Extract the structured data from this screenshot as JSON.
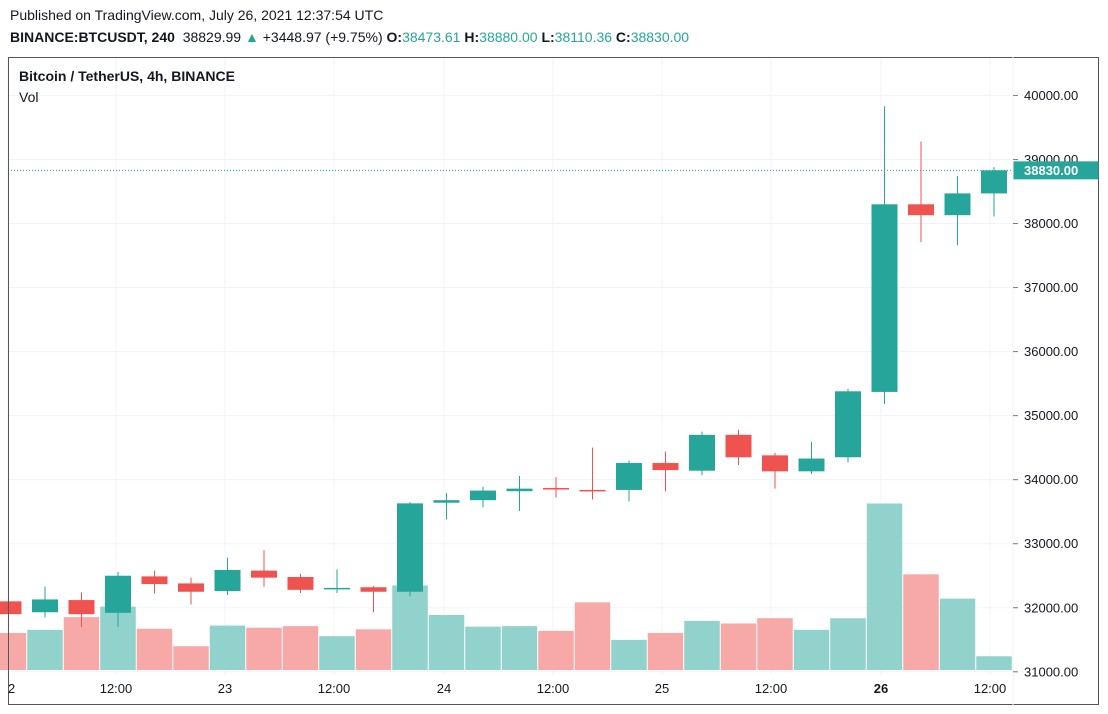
{
  "header": {
    "published": "Published on TradingView.com, July 26, 2021 12:37:54 UTC",
    "symbol": "BINANCE:BTCUSDT, 240",
    "last": "38829.99",
    "change_arrow": "▲",
    "change": "+3448.97 (+9.75%)",
    "o_label": "O:",
    "o_value": "38473.61",
    "h_label": "H:",
    "h_value": "38880.00",
    "l_label": "L:",
    "l_value": "38110.36",
    "c_label": "C:",
    "c_value": "38830.00"
  },
  "legend": {
    "title": "Bitcoin / TetherUS, 4h, BINANCE",
    "volume_label": "Vol"
  },
  "colors": {
    "up": "#26a69a",
    "down": "#ef5350",
    "up_vol": "#92d2cc",
    "down_vol": "#f7a9a7",
    "grid": "#f0f3fa",
    "border": "#555555"
  },
  "chart_data": {
    "type": "candlestick",
    "y_axis_ticks": [
      "40000.00",
      "39000.00",
      "38000.00",
      "37000.00",
      "36000.00",
      "35000.00",
      "34000.00",
      "33000.00",
      "32000.00",
      "31000.00"
    ],
    "ylim": [
      30950,
      40600
    ],
    "x_tick_labels": [
      "2",
      "12:00",
      "23",
      "12:00",
      "24",
      "12:00",
      "25",
      "12:00",
      "26",
      "12:00"
    ],
    "last_price_label": "38830.00",
    "last_price": 38830,
    "candles": [
      {
        "o": 32100,
        "h": 32150,
        "l": 31900,
        "c": 31900
      },
      {
        "o": 31930,
        "h": 32330,
        "l": 31850,
        "c": 32130
      },
      {
        "o": 32120,
        "h": 32240,
        "l": 31700,
        "c": 31900
      },
      {
        "o": 31920,
        "h": 32560,
        "l": 31700,
        "c": 32500
      },
      {
        "o": 32490,
        "h": 32580,
        "l": 32220,
        "c": 32370
      },
      {
        "o": 32380,
        "h": 32470,
        "l": 32050,
        "c": 32250
      },
      {
        "o": 32260,
        "h": 32780,
        "l": 32200,
        "c": 32590
      },
      {
        "o": 32580,
        "h": 32900,
        "l": 32330,
        "c": 32470
      },
      {
        "o": 32480,
        "h": 32530,
        "l": 32230,
        "c": 32280
      },
      {
        "o": 32290,
        "h": 32600,
        "l": 32230,
        "c": 32310
      },
      {
        "o": 32320,
        "h": 32340,
        "l": 31930,
        "c": 32250
      },
      {
        "o": 32250,
        "h": 33650,
        "l": 32180,
        "c": 33630
      },
      {
        "o": 33640,
        "h": 33790,
        "l": 33380,
        "c": 33680
      },
      {
        "o": 33680,
        "h": 33890,
        "l": 33570,
        "c": 33830
      },
      {
        "o": 33820,
        "h": 34060,
        "l": 33510,
        "c": 33860
      },
      {
        "o": 33870,
        "h": 34040,
        "l": 33720,
        "c": 33850
      },
      {
        "o": 33840,
        "h": 34500,
        "l": 33690,
        "c": 33830
      },
      {
        "o": 33840,
        "h": 34300,
        "l": 33660,
        "c": 34260
      },
      {
        "o": 34260,
        "h": 34440,
        "l": 33820,
        "c": 34150
      },
      {
        "o": 34140,
        "h": 34750,
        "l": 34070,
        "c": 34700
      },
      {
        "o": 34700,
        "h": 34780,
        "l": 34230,
        "c": 34350
      },
      {
        "o": 34380,
        "h": 34420,
        "l": 33860,
        "c": 34130
      },
      {
        "o": 34130,
        "h": 34590,
        "l": 34090,
        "c": 34330
      },
      {
        "o": 34350,
        "h": 35420,
        "l": 34270,
        "c": 35380
      },
      {
        "o": 35370,
        "h": 39830,
        "l": 35180,
        "c": 38300
      },
      {
        "o": 38300,
        "h": 39280,
        "l": 37710,
        "c": 38130
      },
      {
        "o": 38130,
        "h": 38740,
        "l": 37660,
        "c": 38470
      },
      {
        "o": 38470,
        "h": 38880,
        "l": 38110,
        "c": 38830
      }
    ],
    "volumes": [
      700,
      760,
      1000,
      1200,
      780,
      450,
      840,
      800,
      830,
      640,
      770,
      1600,
      1040,
      820,
      830,
      740,
      1280,
      570,
      700,
      930,
      880,
      980,
      760,
      980,
      3150,
      1810,
      1350,
      260
    ]
  }
}
